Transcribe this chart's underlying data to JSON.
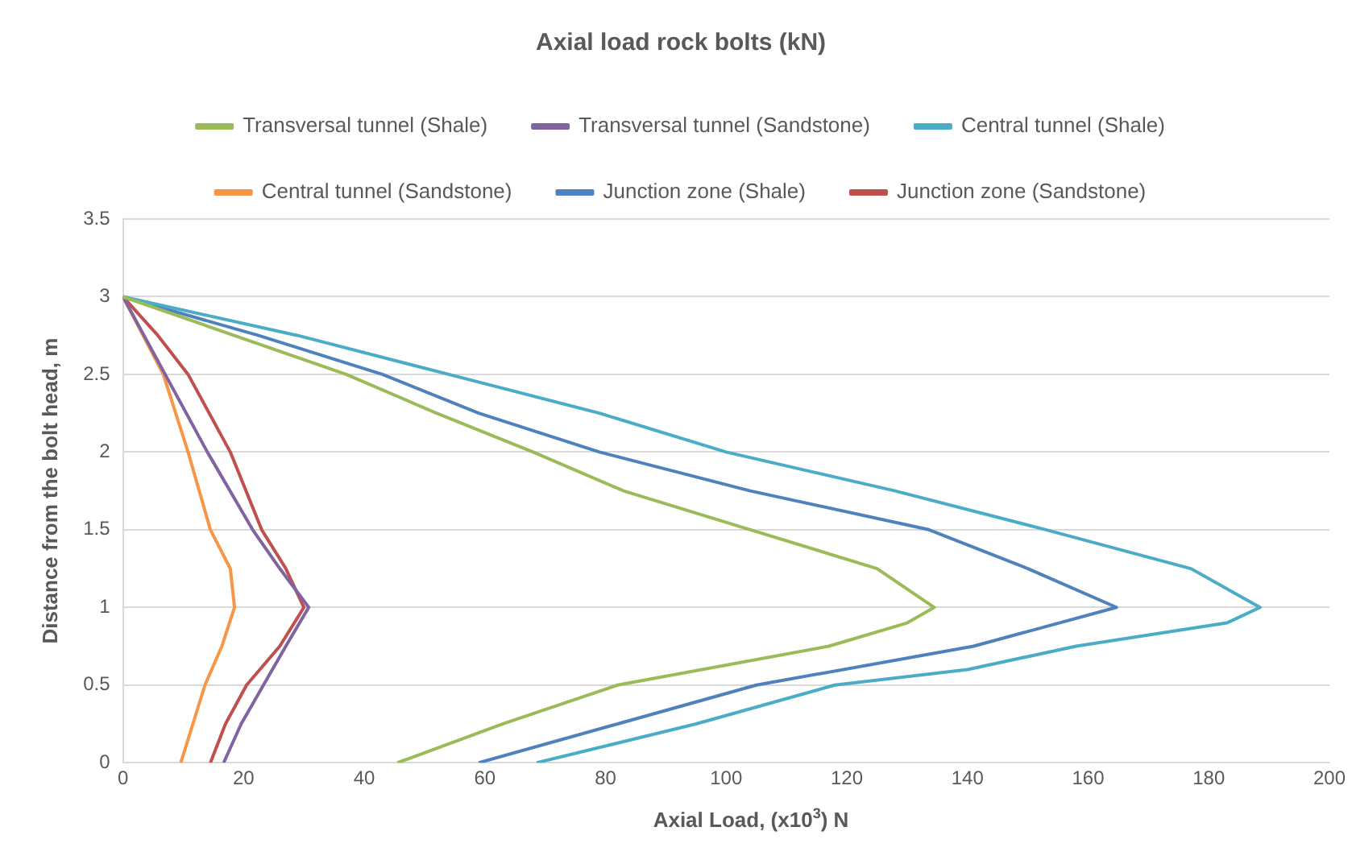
{
  "chart_data": {
    "type": "line",
    "title": "Axial load rock bolts (kN)",
    "xlabel": "Axial Load, (x10$^{3}$) N",
    "ylabel": "Distance from the bolt head, m",
    "xlim": [
      0,
      200
    ],
    "xticks": [
      0,
      20,
      40,
      60,
      80,
      100,
      120,
      140,
      160,
      180,
      200
    ],
    "ylim": [
      0,
      3.5
    ],
    "yticks": [
      0,
      0.5,
      1,
      1.5,
      2,
      2.5,
      3,
      3.5
    ],
    "grid": "y",
    "legend": "top",
    "marker": "none",
    "series": [
      {
        "name": "Transversal tunnel (Shale)",
        "color": "#9bbb59",
        "x": [
          45.5,
          63,
          82,
          117,
          130,
          134.5,
          125,
          104,
          83,
          68,
          52,
          37,
          0
        ],
        "values": [
          0,
          0.25,
          0.5,
          0.75,
          0.9,
          1,
          1.25,
          1.5,
          1.75,
          2,
          2.25,
          2.5,
          3
        ]
      },
      {
        "name": "Transversal tunnel (Sandstone)",
        "color": "#8064a2",
        "x": [
          16.7,
          19.6,
          23.3,
          27,
          30.8,
          26,
          21.5,
          14,
          7,
          0
        ],
        "values": [
          0,
          0.25,
          0.5,
          0.75,
          1,
          1.25,
          1.5,
          2,
          2.5,
          3
        ]
      },
      {
        "name": "Central tunnel (Shale)",
        "color": "#4bacc6",
        "x": [
          68.6,
          95,
          118,
          140,
          158,
          183,
          188.5,
          177,
          153,
          128,
          100,
          79,
          54,
          29,
          0
        ],
        "values": [
          0,
          0.25,
          0.5,
          0.6,
          0.75,
          0.9,
          1,
          1.25,
          1.5,
          1.75,
          2,
          2.25,
          2.5,
          2.75,
          3
        ]
      },
      {
        "name": "Central tunnel (Sandstone)",
        "color": "#f79646",
        "x": [
          9.6,
          13.6,
          16.4,
          18.5,
          17.8,
          14.5,
          10.8,
          6.7,
          0
        ],
        "values": [
          0,
          0.5,
          0.75,
          1,
          1.25,
          1.5,
          2,
          2.5,
          3
        ]
      },
      {
        "name": "Junction zone (Shale)",
        "color": "#4f81bd",
        "x": [
          59,
          82,
          105,
          141,
          164.7,
          150,
          133.6,
          104,
          79,
          59,
          43,
          22.5,
          0
        ],
        "values": [
          0,
          0.25,
          0.5,
          0.75,
          1,
          1.25,
          1.5,
          1.75,
          2,
          2.25,
          2.5,
          2.75,
          3
        ]
      },
      {
        "name": "Junction zone (Sandstone)",
        "color": "#c0504d",
        "x": [
          14.5,
          17,
          20.5,
          26,
          30,
          27,
          23,
          17.8,
          10.8,
          5.8,
          0
        ],
        "values": [
          0,
          0.25,
          0.5,
          0.75,
          1,
          1.25,
          1.5,
          2,
          2.5,
          2.75,
          3
        ]
      }
    ]
  }
}
